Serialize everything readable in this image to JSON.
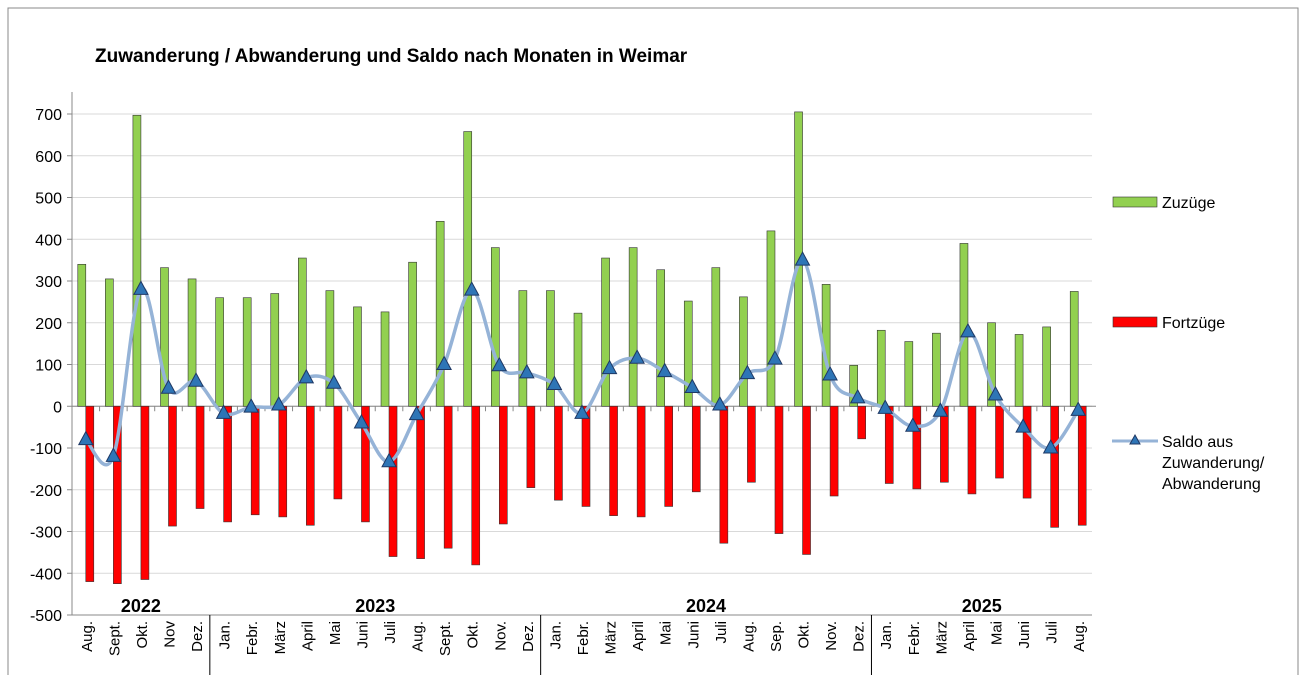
{
  "chart_data": {
    "type": "bar_line",
    "title": "Zuwanderung / Abwanderung und Saldo nach Monaten in Weimar",
    "categories": [
      "Aug.",
      "Sept.",
      "Okt.",
      "Nov",
      "Dez.",
      "Jan.",
      "Febr.",
      "März",
      "April",
      "Mai",
      "Juni",
      "Juli",
      "Aug.",
      "Sept.",
      "Okt.",
      "Nov.",
      "Dez.",
      "Jan.",
      "Febr.",
      "März",
      "April",
      "Mai",
      "Juni",
      "Juli",
      "Aug.",
      "Sep.",
      "Okt.",
      "Nov.",
      "Dez.",
      "Jan.",
      "Febr.",
      "März",
      "April",
      "Mai",
      "Juni",
      "Juli",
      "Aug."
    ],
    "years": [
      "2022",
      "2023",
      "2024",
      "2025"
    ],
    "series": [
      {
        "name": "Zuzüge",
        "type": "bar",
        "color": "#92d050",
        "values": [
          340,
          305,
          697,
          332,
          305,
          260,
          260,
          270,
          355,
          277,
          238,
          226,
          345,
          443,
          658,
          380,
          277,
          277,
          223,
          355,
          380,
          327,
          252,
          332,
          262,
          420,
          705,
          292,
          98,
          182,
          155,
          175,
          390,
          200,
          172,
          190,
          275
        ]
      },
      {
        "name": "Fortzüge",
        "type": "bar",
        "color": "#ff0000",
        "values": [
          -420,
          -425,
          -415,
          -287,
          -245,
          -277,
          -260,
          -265,
          -285,
          -222,
          -277,
          -360,
          -365,
          -340,
          -380,
          -282,
          -195,
          -225,
          -240,
          -262,
          -265,
          -240,
          -205,
          -328,
          -182,
          -305,
          -355,
          -215,
          -78,
          -185,
          -198,
          -182,
          -210,
          -172,
          -220,
          -290,
          -285
        ]
      },
      {
        "name": "Saldo aus Zuwanderung/ Abwanderung",
        "type": "line",
        "color": "#95b3d7",
        "marker_color": "#2e75b6",
        "values": [
          -80,
          -120,
          280,
          43,
          60,
          -17,
          -2,
          3,
          68,
          55,
          -40,
          -133,
          -20,
          100,
          278,
          97,
          80,
          52,
          -17,
          90,
          115,
          83,
          45,
          3,
          78,
          113,
          350,
          75,
          20,
          -5,
          -48,
          -12,
          178,
          27,
          -50,
          -100,
          -10
        ]
      }
    ],
    "ylim": [
      -500,
      750
    ],
    "yticks": [
      -500,
      -400,
      -300,
      -200,
      -100,
      0,
      100,
      200,
      300,
      400,
      500,
      600,
      700
    ],
    "grid": true
  }
}
